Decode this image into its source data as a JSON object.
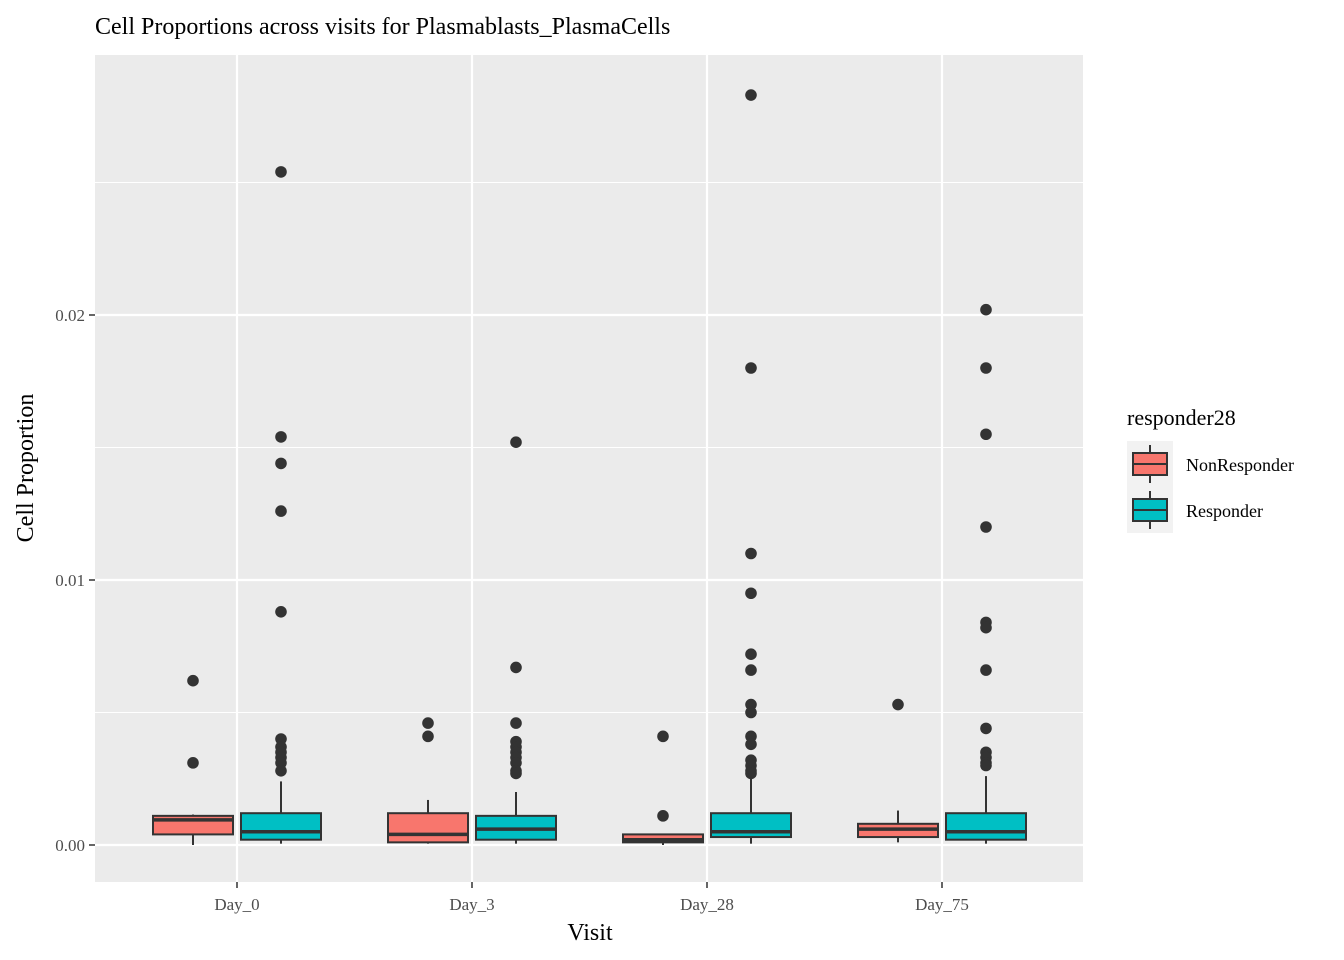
{
  "chart_data": {
    "type": "box",
    "title": "Cell Proportions across visits for Plasmablasts_PlasmaCells",
    "xlabel": "Visit",
    "ylabel": "Cell Proportion",
    "categories": [
      "Day_0",
      "Day_3",
      "Day_28",
      "Day_75"
    ],
    "y_ticks": [
      {
        "value": 0.0,
        "label": "0.00"
      },
      {
        "value": 0.01,
        "label": "0.01"
      },
      {
        "value": 0.02,
        "label": "0.02"
      }
    ],
    "ylim": [
      -0.0014,
      0.0297
    ],
    "grid": true,
    "legend": {
      "title": "responder28",
      "placement": "right",
      "entries": [
        "NonResponder",
        "Responder"
      ]
    },
    "series": [
      {
        "name": "NonResponder",
        "color": "#F8766D",
        "boxes": [
          {
            "category": "Day_0",
            "min": 0.0,
            "q1": 0.0004,
            "median": 0.00095,
            "q3": 0.0011,
            "max": 0.00115,
            "outliers": [
              0.0062,
              0.0031
            ]
          },
          {
            "category": "Day_3",
            "min": 5e-05,
            "q1": 0.0001,
            "median": 0.0004,
            "q3": 0.0012,
            "max": 0.0017,
            "outliers": [
              0.0046,
              0.0041
            ]
          },
          {
            "category": "Day_28",
            "min": 0.0,
            "q1": 0.0001,
            "median": 0.0002,
            "q3": 0.0004,
            "max": 0.0004,
            "outliers": [
              0.0041,
              0.0011
            ]
          },
          {
            "category": "Day_75",
            "min": 0.0001,
            "q1": 0.0003,
            "median": 0.0006,
            "q3": 0.0008,
            "max": 0.0013,
            "outliers": [
              0.0053
            ]
          }
        ]
      },
      {
        "name": "Responder",
        "color": "#00BFC4",
        "boxes": [
          {
            "category": "Day_0",
            "min": 5e-05,
            "q1": 0.0002,
            "median": 0.0005,
            "q3": 0.0012,
            "max": 0.0024,
            "outliers": [
              0.0254,
              0.0154,
              0.0144,
              0.0126,
              0.0088,
              0.004,
              0.0037,
              0.0035,
              0.0033,
              0.0031,
              0.0028
            ]
          },
          {
            "category": "Day_3",
            "min": 5e-05,
            "q1": 0.0002,
            "median": 0.0006,
            "q3": 0.0011,
            "max": 0.002,
            "outliers": [
              0.0152,
              0.0067,
              0.0046,
              0.0039,
              0.0037,
              0.0035,
              0.0033,
              0.0031,
              0.0028,
              0.0027
            ]
          },
          {
            "category": "Day_28",
            "min": 5e-05,
            "q1": 0.0003,
            "median": 0.0005,
            "q3": 0.0012,
            "max": 0.0025,
            "outliers": [
              0.0283,
              0.018,
              0.011,
              0.0095,
              0.0072,
              0.0066,
              0.0053,
              0.005,
              0.0041,
              0.0038,
              0.0032,
              0.003,
              0.0028,
              0.0027
            ]
          },
          {
            "category": "Day_75",
            "min": 5e-05,
            "q1": 0.0002,
            "median": 0.0005,
            "q3": 0.0012,
            "max": 0.0026,
            "outliers": [
              0.0202,
              0.018,
              0.0155,
              0.012,
              0.0084,
              0.0082,
              0.0066,
              0.0044,
              0.0035,
              0.0033,
              0.0031,
              0.003
            ]
          }
        ]
      }
    ]
  }
}
